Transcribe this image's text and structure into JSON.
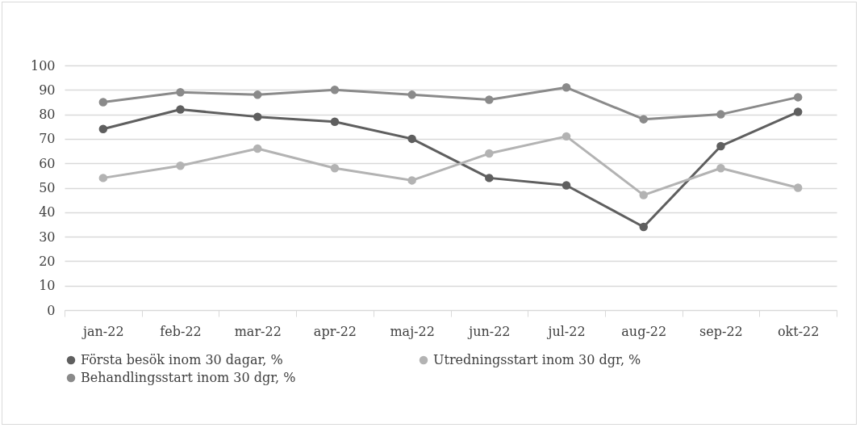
{
  "chart_data": {
    "type": "line",
    "categories": [
      "jan-22",
      "feb-22",
      "mar-22",
      "apr-22",
      "maj-22",
      "jun-22",
      "jul-22",
      "aug-22",
      "sep-22",
      "okt-22"
    ],
    "series": [
      {
        "name": "Första besök inom 30 dagar, %",
        "color": "#5f5f5f",
        "values": [
          74,
          82,
          79,
          77,
          70,
          54,
          51,
          34,
          67,
          81
        ]
      },
      {
        "name": "Utredningsstart inom 30 dgr, %",
        "color": "#b3b3b3",
        "values": [
          54,
          59,
          66,
          58,
          53,
          64,
          71,
          47,
          58,
          50
        ]
      },
      {
        "name": "Behandlingsstart inom 30 dgr, %",
        "color": "#8a8a8a",
        "values": [
          85,
          89,
          88,
          90,
          88,
          86,
          91,
          78,
          80,
          87
        ]
      }
    ],
    "ylim": [
      0,
      100
    ],
    "yticks": [
      0,
      10,
      20,
      30,
      40,
      50,
      60,
      70,
      80,
      90,
      100
    ],
    "grid": "y",
    "legend": "bottom",
    "marker": "circle",
    "line_style": "solid"
  }
}
